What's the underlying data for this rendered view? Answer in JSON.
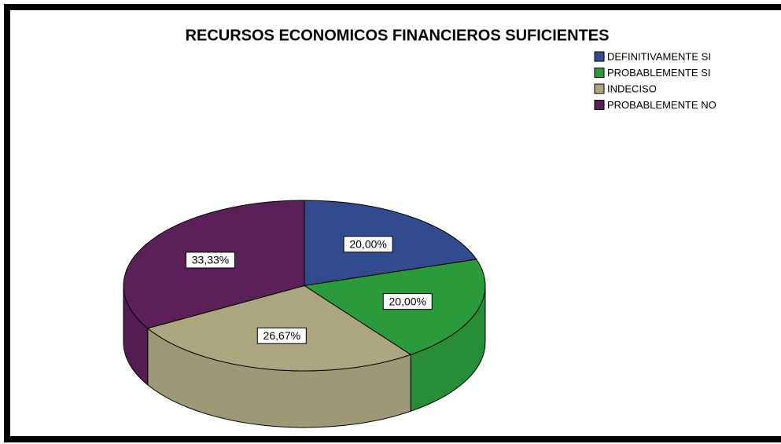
{
  "chart_data": {
    "type": "pie",
    "title": "RECURSOS ECONOMICOS FINANCIEROS SUFICIENTES",
    "categories": [
      "DEFINITIVAMENTE SI",
      "PROBABLEMENTE SI",
      "INDECISO",
      "PROBABLEMENTE NO"
    ],
    "values": [
      20,
      20,
      26.67,
      33.33
    ],
    "value_labels": [
      "20,00%",
      "20,00%",
      "26,67%",
      "33,33%"
    ],
    "colors": [
      "#324a8e",
      "#2b9a3b",
      "#aba580",
      "#5c2058"
    ]
  }
}
